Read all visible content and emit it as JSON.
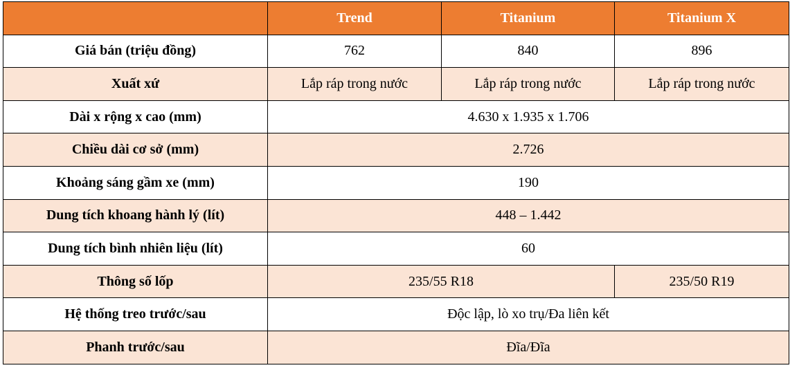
{
  "table": {
    "header": [
      "Trend",
      "Titanium",
      "Titanium X"
    ],
    "rows": [
      {
        "label": "Giá bán (triệu đồng)",
        "cells": [
          "762",
          "840",
          "896"
        ]
      },
      {
        "label": "Xuất xứ",
        "cells": [
          "Lắp ráp trong nước",
          "Lắp ráp trong nước",
          "Lắp ráp trong nước"
        ]
      },
      {
        "label": "Dài x rộng x cao (mm)",
        "cells": [
          "4.630 x 1.935 x 1.706"
        ]
      },
      {
        "label": "Chiều dài cơ sở (mm)",
        "cells": [
          "2.726"
        ]
      },
      {
        "label": "Khoảng sáng gầm xe (mm)",
        "cells": [
          "190"
        ]
      },
      {
        "label": "Dung tích khoang hành lý (lít)",
        "cells": [
          "448 – 1.442"
        ]
      },
      {
        "label": "Dung tích bình nhiên liệu (lít)",
        "cells": [
          "60"
        ]
      },
      {
        "label": "Thông số lốp",
        "cells": [
          "235/55 R18",
          "235/50 R19"
        ]
      },
      {
        "label": "Hệ thống treo trước/sau",
        "cells": [
          "Độc lập, lò xo trụ/Đa liên kết"
        ]
      },
      {
        "label": "Phanh trước/sau",
        "cells": [
          "Đĩa/Đĩa"
        ]
      }
    ]
  }
}
